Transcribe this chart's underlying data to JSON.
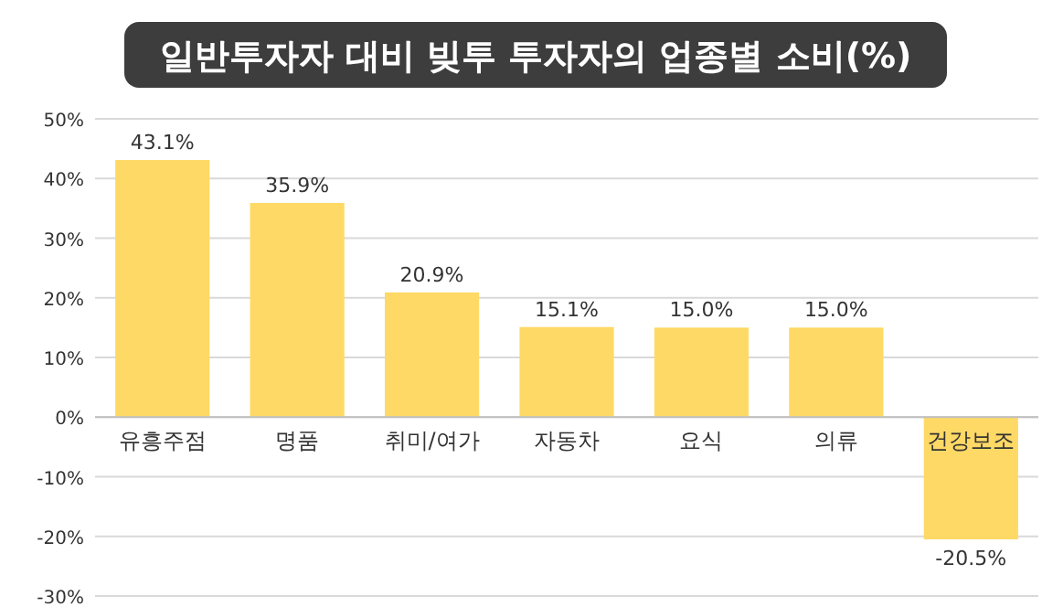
{
  "chart_data": {
    "type": "bar",
    "title": "일반투자자 대비 빚투 투자자의 업종별 소비(%)",
    "categories": [
      "유흥주점",
      "명품",
      "취미/여가",
      "자동차",
      "요식",
      "의류",
      "건강보조"
    ],
    "values": [
      43.1,
      35.9,
      20.9,
      15.1,
      15.0,
      15.0,
      -20.5
    ],
    "value_labels": [
      "43.1%",
      "35.9%",
      "20.9%",
      "15.1%",
      "15.0%",
      "15.0%",
      "-20.5%"
    ],
    "color": "#ffd966",
    "ylim": [
      -30,
      50
    ],
    "yticks": [
      {
        "value": -30,
        "label": "-30%"
      },
      {
        "value": -20,
        "label": "-20%"
      },
      {
        "value": -10,
        "label": "-10%"
      },
      {
        "value": 0,
        "label": "0%"
      },
      {
        "value": 10,
        "label": "10%"
      },
      {
        "value": 20,
        "label": "20%"
      },
      {
        "value": 30,
        "label": "30%"
      },
      {
        "value": 40,
        "label": "40%"
      },
      {
        "value": 50,
        "label": "50%"
      }
    ],
    "grid": "y"
  }
}
